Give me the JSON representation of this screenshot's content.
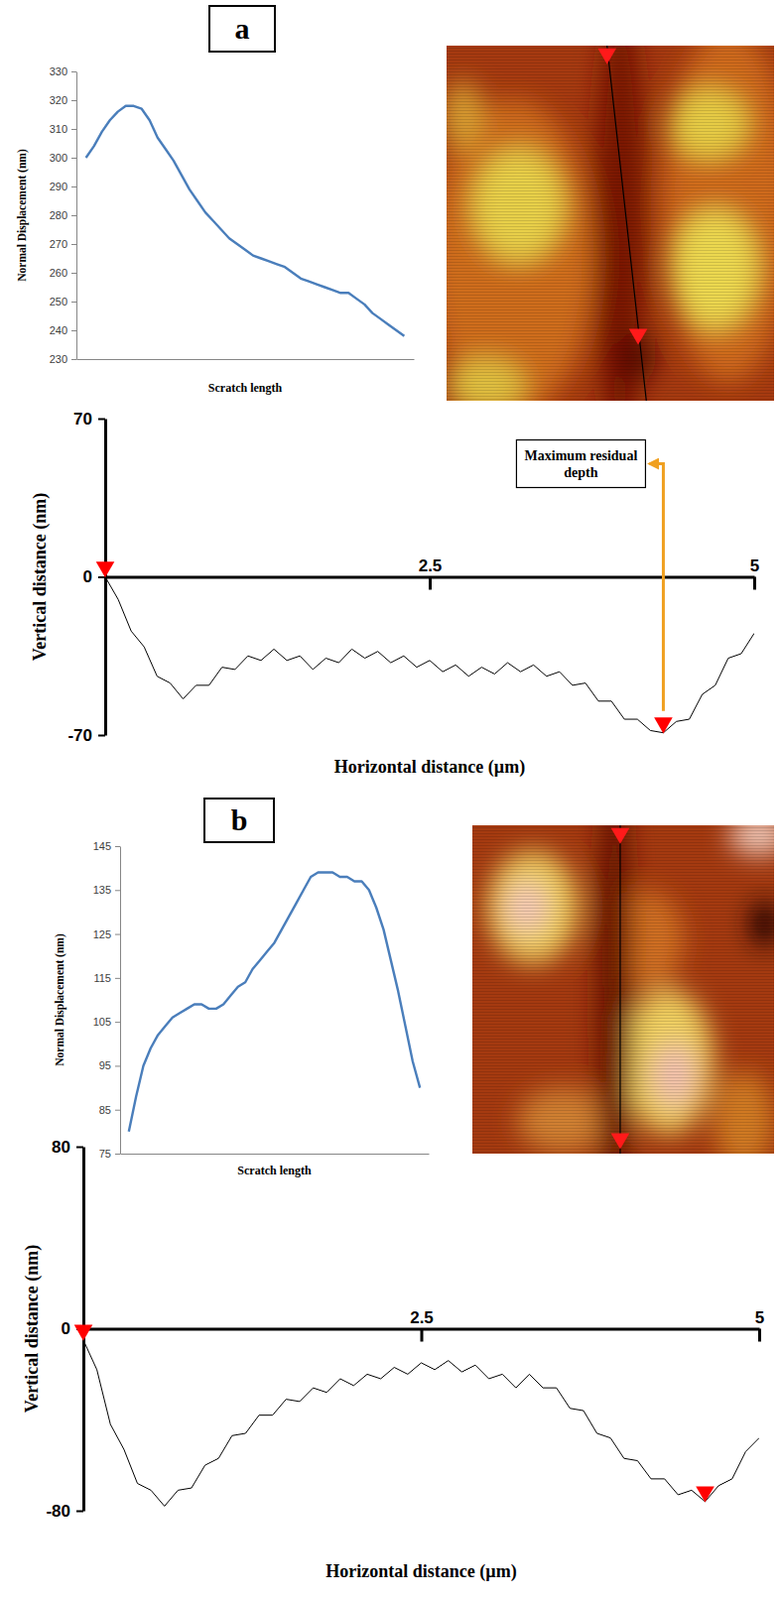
{
  "panel_labels": [
    "a",
    "b"
  ],
  "chart_data": [
    {
      "type": "line",
      "x_label": "Scratch length",
      "y_label": "Normal Displacement (nm)",
      "xlim": [
        -3,
        103
      ],
      "ylim": [
        230,
        330
      ],
      "yticks": [
        230,
        240,
        250,
        260,
        270,
        280,
        290,
        300,
        310,
        320,
        330
      ],
      "tick_labels": "y",
      "color": "#4a7ebb",
      "x": [
        0,
        2.5,
        5,
        7.5,
        10,
        12.5,
        15,
        17.5,
        20,
        22.5,
        25,
        27.5,
        30,
        32.5,
        35,
        37.5,
        40,
        42.5,
        45,
        47.5,
        50,
        52.5,
        55,
        57.5,
        60,
        62.5,
        65,
        67.5,
        70,
        72.5,
        75,
        77.5,
        80,
        82.5,
        85,
        87.5,
        90,
        92.5,
        95,
        97.5,
        100
      ],
      "values": [
        300,
        304,
        309,
        313,
        316,
        318,
        318,
        317,
        313,
        307,
        303,
        299,
        294,
        289,
        285,
        281,
        278,
        275,
        272,
        270,
        268,
        266,
        265,
        264,
        263,
        262,
        260,
        258,
        257,
        256,
        255,
        254,
        253,
        253,
        251,
        249,
        246,
        244,
        242,
        240,
        238
      ]
    },
    {
      "type": "line",
      "x_label": "Horizontal distance (µm)",
      "y_label": "Vertical distance (nm)",
      "xlim": [
        0,
        5
      ],
      "ylim": [
        -70,
        70
      ],
      "xticks": [
        2.5,
        5
      ],
      "yticks": [
        -70,
        0,
        70
      ],
      "series": [
        {
          "type": "line",
          "color": "#000000",
          "x": [
            0,
            0.1,
            0.2,
            0.3,
            0.4,
            0.5,
            0.6,
            0.7,
            0.8,
            0.9,
            1,
            1.1,
            1.2,
            1.3,
            1.4,
            1.5,
            1.6,
            1.7,
            1.8,
            1.9,
            2,
            2.1,
            2.2,
            2.3,
            2.4,
            2.5,
            2.6,
            2.7,
            2.8,
            2.9,
            3,
            3.1,
            3.2,
            3.3,
            3.4,
            3.5,
            3.6,
            3.7,
            3.8,
            3.9,
            4,
            4.1,
            4.2,
            4.3,
            4.4,
            4.5,
            4.6,
            4.7,
            4.8,
            4.9,
            5
          ],
          "values": [
            0,
            -10,
            -24,
            -31,
            -44,
            -47,
            -54,
            -48,
            -48,
            -40,
            -41,
            -35,
            -37,
            -32,
            -37,
            -35,
            -41,
            -36,
            -38,
            -32,
            -36,
            -33,
            -38,
            -35,
            -40,
            -37,
            -42,
            -39,
            -44,
            -40,
            -43,
            -38,
            -42,
            -39,
            -44,
            -42,
            -48,
            -47,
            -55,
            -55,
            -63,
            -63,
            -68,
            -69,
            -64,
            -63,
            -52,
            -48,
            -36,
            -34,
            -25
          ]
        },
        {
          "type": "scatter",
          "marker": "triangle",
          "color": "#ff0000",
          "x": [
            0,
            4.3
          ],
          "values": [
            0,
            -69
          ]
        }
      ],
      "annotations": [
        {
          "text": "Maximum residual depth",
          "x": 4.3,
          "y": -69
        }
      ]
    },
    {
      "type": "line",
      "x_label": "Scratch length",
      "y_label": "Normal Displacement (nm)",
      "xlim": [
        -3,
        103
      ],
      "ylim": [
        75,
        145
      ],
      "yticks": [
        75,
        85,
        95,
        105,
        115,
        125,
        135,
        145
      ],
      "tick_labels": "y",
      "color": "#4a7ebb",
      "x": [
        0,
        2.5,
        5,
        7.5,
        10,
        12.5,
        15,
        17.5,
        20,
        22.5,
        25,
        27.5,
        30,
        32.5,
        35,
        37.5,
        40,
        42.5,
        45,
        47.5,
        50,
        52.5,
        55,
        57.5,
        60,
        62.5,
        65,
        67.5,
        70,
        72.5,
        75,
        77.5,
        80,
        82.5,
        85,
        87.5,
        90,
        92.5,
        95,
        97.5,
        100
      ],
      "values": [
        80,
        88,
        95,
        99,
        102,
        104,
        106,
        107,
        108,
        109,
        109,
        108,
        108,
        109,
        111,
        113,
        114,
        117,
        119,
        121,
        123,
        126,
        129,
        132,
        135,
        138,
        139,
        139,
        139,
        138,
        138,
        137,
        137,
        135,
        131,
        126,
        119,
        112,
        104,
        96,
        90
      ]
    },
    {
      "type": "line",
      "x_label": "Horizontal distance (µm)",
      "y_label": "Vertical distance (nm)",
      "xlim": [
        0,
        5
      ],
      "ylim": [
        -80,
        80
      ],
      "xticks": [
        2.5,
        5
      ],
      "yticks": [
        -80,
        0,
        80
      ],
      "series": [
        {
          "type": "line",
          "color": "#000000",
          "x": [
            0,
            0.1,
            0.2,
            0.3,
            0.4,
            0.5,
            0.6,
            0.7,
            0.8,
            0.9,
            1,
            1.1,
            1.2,
            1.3,
            1.4,
            1.5,
            1.6,
            1.7,
            1.8,
            1.9,
            2,
            2.1,
            2.2,
            2.3,
            2.4,
            2.5,
            2.6,
            2.7,
            2.8,
            2.9,
            3,
            3.1,
            3.2,
            3.3,
            3.4,
            3.5,
            3.6,
            3.7,
            3.8,
            3.9,
            4,
            4.1,
            4.2,
            4.3,
            4.4,
            4.5,
            4.6,
            4.7,
            4.8,
            4.9,
            5
          ],
          "values": [
            -5,
            -18,
            -42,
            -53,
            -68,
            -71,
            -78,
            -71,
            -70,
            -60,
            -57,
            -47,
            -46,
            -38,
            -38,
            -31,
            -32,
            -26,
            -28,
            -22,
            -25,
            -20,
            -22,
            -17,
            -20,
            -15,
            -18,
            -14,
            -19,
            -16,
            -22,
            -20,
            -26,
            -20,
            -26,
            -26,
            -35,
            -36,
            -46,
            -48,
            -57,
            -58,
            -66,
            -66,
            -73,
            -71,
            -76,
            -69,
            -66,
            -54,
            -48
          ]
        },
        {
          "type": "scatter",
          "marker": "triangle",
          "color": "#ff0000",
          "x": [
            0,
            4.6
          ],
          "values": [
            -5,
            -76
          ]
        }
      ]
    }
  ]
}
